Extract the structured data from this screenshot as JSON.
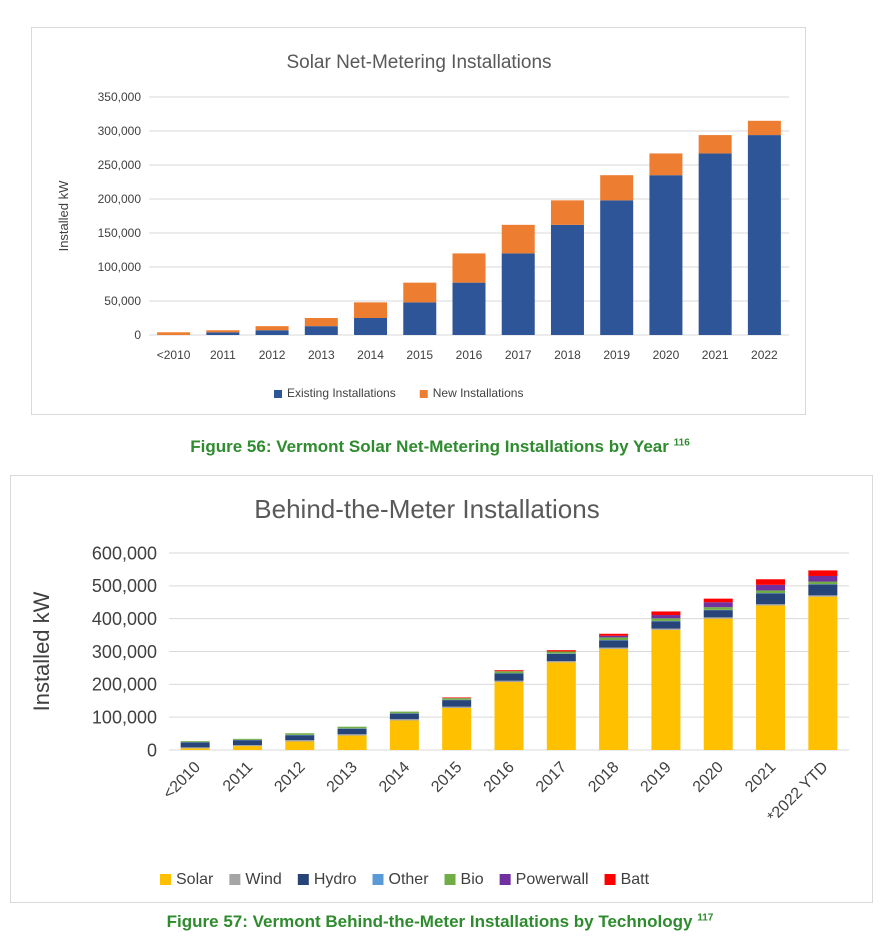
{
  "chart_data": [
    {
      "type": "bar",
      "stacked": true,
      "title": "Solar Net-Metering Installations",
      "xlabel": "",
      "ylabel": "Installed kW",
      "ylim": [
        0,
        350000
      ],
      "yticks": [
        "0",
        "50,000",
        "100,000",
        "150,000",
        "200,000",
        "250,000",
        "300,000",
        "350,000"
      ],
      "categories": [
        "<2010",
        "2011",
        "2012",
        "2013",
        "2014",
        "2015",
        "2016",
        "2017",
        "2018",
        "2019",
        "2020",
        "2021",
        "2022"
      ],
      "series": [
        {
          "name": "Existing Installations",
          "color": "#2e5597",
          "values": [
            0,
            4000,
            7000,
            13000,
            25000,
            48000,
            77000,
            120000,
            162000,
            198000,
            235000,
            267000,
            294000
          ]
        },
        {
          "name": "New Installations",
          "color": "#ed7d31",
          "values": [
            4000,
            3000,
            6000,
            12000,
            23000,
            29000,
            43000,
            42000,
            36000,
            37000,
            32000,
            27000,
            21000
          ]
        }
      ],
      "legend_position": "bottom",
      "grid": true,
      "caption": "Figure 56: Vermont Solar Net-Metering Installations by Year",
      "footnote": "116"
    },
    {
      "type": "bar",
      "stacked": true,
      "title": "Behind-the-Meter Installations",
      "xlabel": "",
      "ylabel": "Installed kW",
      "ylim": [
        0,
        600000
      ],
      "yticks": [
        "0",
        "100,000",
        "200,000",
        "300,000",
        "400,000",
        "500,000",
        "600,000"
      ],
      "categories": [
        "<2010",
        "2011",
        "2012",
        "2013",
        "2014",
        "2015",
        "2016",
        "2017",
        "2018",
        "2019",
        "2020",
        "2021",
        "*2022 YTD"
      ],
      "series": [
        {
          "name": "Solar",
          "color": "#ffc000",
          "values": [
            5000,
            12000,
            26000,
            44000,
            90000,
            128000,
            207000,
            267000,
            308000,
            366000,
            400000,
            440000,
            467000
          ]
        },
        {
          "name": "Wind",
          "color": "#a5a5a5",
          "values": [
            3000,
            3000,
            4000,
            4000,
            4000,
            4000,
            4000,
            4000,
            4000,
            4000,
            4000,
            4000,
            4000
          ]
        },
        {
          "name": "Hydro",
          "color": "#264478",
          "values": [
            15000,
            15000,
            15000,
            17000,
            17000,
            20000,
            22000,
            22000,
            22000,
            22000,
            22000,
            33000,
            33000
          ]
        },
        {
          "name": "Other",
          "color": "#5b9bd5",
          "values": [
            1000,
            1000,
            1000,
            1000,
            1000,
            1000,
            1000,
            1000,
            1000,
            1000,
            1000,
            1000,
            1000
          ]
        },
        {
          "name": "Bio",
          "color": "#70ad47",
          "values": [
            3000,
            3000,
            5000,
            5000,
            5000,
            5000,
            6000,
            6000,
            8000,
            8000,
            8000,
            8000,
            8000
          ]
        },
        {
          "name": "Powerwall",
          "color": "#7030a0",
          "values": [
            0,
            0,
            0,
            0,
            0,
            0,
            0,
            0,
            5000,
            10000,
            15000,
            17000,
            17000
          ]
        },
        {
          "name": "Batt",
          "color": "#ff0000",
          "values": [
            0,
            0,
            0,
            0,
            0,
            2000,
            3000,
            4000,
            6000,
            11000,
            11000,
            17000,
            17000
          ]
        }
      ],
      "legend_position": "bottom",
      "grid": true,
      "caption": "Figure 57: Vermont Behind-the-Meter Installations by Technology",
      "footnote": "117"
    }
  ]
}
